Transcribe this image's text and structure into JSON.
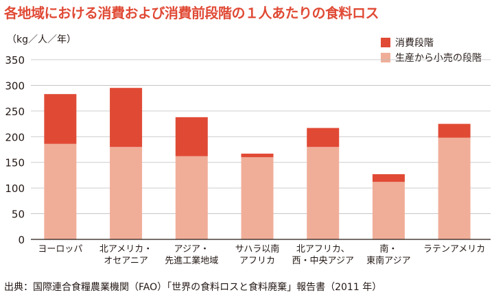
{
  "chart_data": {
    "type": "bar",
    "stacked": true,
    "title": "各地域における消費および消費前段階の１人あたりの食料ロス",
    "ylabel": "（kg／人／年）",
    "ylim": [
      0,
      350
    ],
    "yticks": [
      0,
      50,
      100,
      150,
      200,
      250,
      300,
      350
    ],
    "grid": true,
    "legend_position": "top-right",
    "categories": [
      [
        "ヨーロッパ"
      ],
      [
        "北アメリカ・",
        "オセアニア"
      ],
      [
        "アジア・",
        "先進工業地域"
      ],
      [
        "サハラ以南",
        "アフリカ"
      ],
      [
        "北アフリカ、",
        "西・中央アジア"
      ],
      [
        "南・",
        "東南アジア"
      ],
      [
        "ラテンアメリカ"
      ]
    ],
    "series": [
      {
        "name": "生産から小売の段階",
        "color": "#f0ae99",
        "values": [
          186,
          180,
          162,
          160,
          180,
          112,
          198
        ]
      },
      {
        "name": "消費段階",
        "color": "#e04a35",
        "values": [
          97,
          115,
          76,
          7,
          37,
          15,
          27
        ]
      }
    ]
  },
  "source": "出典：国際連合食糧農業機関（FAO）「世界の食料ロスと食料廃棄」報告書（2011 年）"
}
